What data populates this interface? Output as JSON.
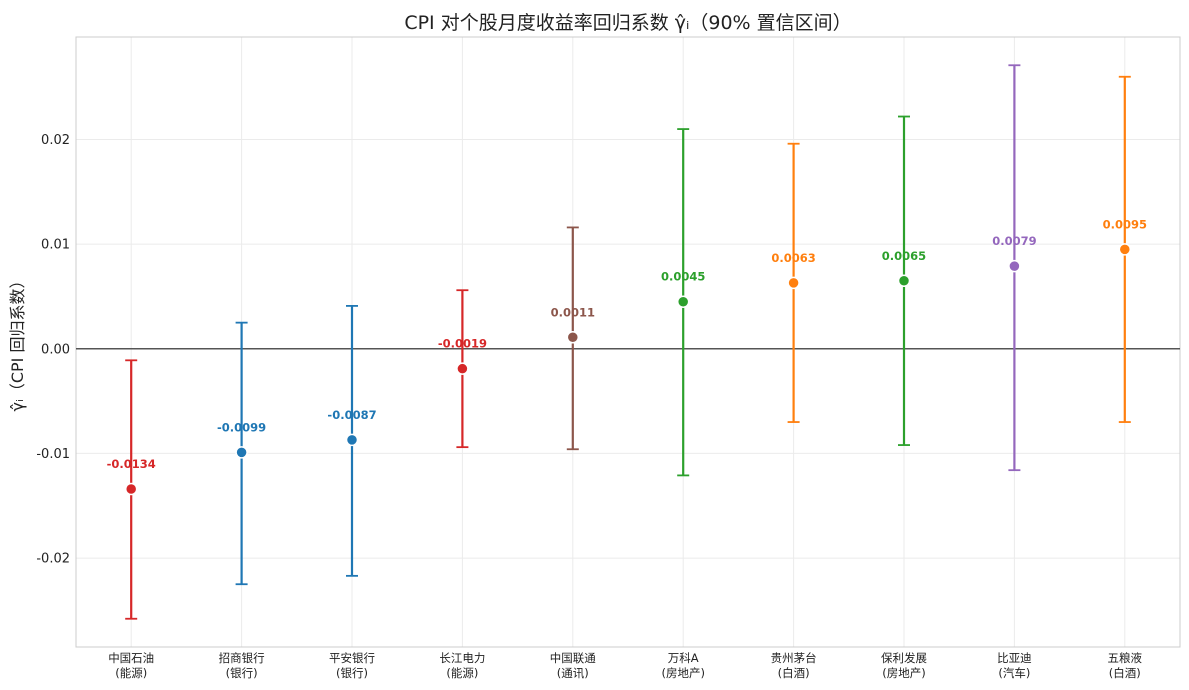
{
  "chart_data": {
    "type": "scatter",
    "title": "CPI 对个股月度收益率回归系数 γ̂ᵢ（90% 置信区间）",
    "xlabel": "",
    "ylabel": "γ̂ᵢ（CPI 回归系数）",
    "ylim": [
      -0.0285,
      0.0298
    ],
    "yticks": [
      -0.02,
      -0.01,
      0.0,
      0.01,
      0.02
    ],
    "ytick_labels": [
      "-0.02",
      "-0.01",
      "0.00",
      "0.01",
      "0.02"
    ],
    "grid": true,
    "reference_line_y": 0,
    "categories": [
      {
        "name": "中国石油",
        "sector": "(能源)"
      },
      {
        "name": "招商银行",
        "sector": "(银行)"
      },
      {
        "name": "平安银行",
        "sector": "(银行)"
      },
      {
        "name": "长江电力",
        "sector": "(能源)"
      },
      {
        "name": "中国联通",
        "sector": "(通讯)"
      },
      {
        "name": "万科A",
        "sector": "(房地产)"
      },
      {
        "name": "贵州茅台",
        "sector": "(白酒)"
      },
      {
        "name": "保利发展",
        "sector": "(房地产)"
      },
      {
        "name": "比亚迪",
        "sector": "(汽车)"
      },
      {
        "name": "五粮液",
        "sector": "(白酒)"
      }
    ],
    "points": [
      {
        "value": -0.0134,
        "lower": -0.0258,
        "upper": -0.0011,
        "label": "-0.0134",
        "color": "#d62728"
      },
      {
        "value": -0.0099,
        "lower": -0.0225,
        "upper": 0.0025,
        "label": "-0.0099",
        "color": "#1f77b4"
      },
      {
        "value": -0.0087,
        "lower": -0.0217,
        "upper": 0.0041,
        "label": "-0.0087",
        "color": "#1f77b4"
      },
      {
        "value": -0.0019,
        "lower": -0.0094,
        "upper": 0.0056,
        "label": "-0.0019",
        "color": "#d62728"
      },
      {
        "value": 0.0011,
        "lower": -0.0096,
        "upper": 0.0116,
        "label": "0.0011",
        "color": "#8c564b"
      },
      {
        "value": 0.0045,
        "lower": -0.0121,
        "upper": 0.021,
        "label": "0.0045",
        "color": "#2ca02c"
      },
      {
        "value": 0.0063,
        "lower": -0.007,
        "upper": 0.0196,
        "label": "0.0063",
        "color": "#ff7f0e"
      },
      {
        "value": 0.0065,
        "lower": -0.0092,
        "upper": 0.0222,
        "label": "0.0065",
        "color": "#2ca02c"
      },
      {
        "value": 0.0079,
        "lower": -0.0116,
        "upper": 0.0271,
        "label": "0.0079",
        "color": "#9467bd"
      },
      {
        "value": 0.0095,
        "lower": -0.007,
        "upper": 0.026,
        "label": "0.0095",
        "color": "#ff7f0e"
      }
    ]
  }
}
